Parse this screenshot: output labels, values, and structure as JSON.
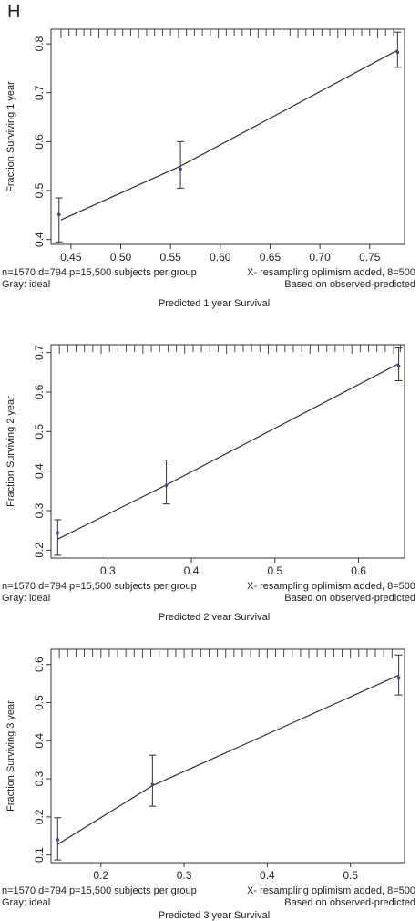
{
  "panel_label": "H",
  "chart_data": [
    {
      "type": "line",
      "ylabel": "Fraction Surviving 1 year",
      "xtitle": "Predicted 1 year Survival",
      "xlim": [
        0.43,
        0.785
      ],
      "ylim": [
        0.39,
        0.83
      ],
      "xticks": [
        "0.45",
        "0.50",
        "0.55",
        "0.60",
        "0.65",
        "0.70",
        "0.75"
      ],
      "yticks": [
        "0.4",
        "0.5",
        "0.6",
        "0.7",
        "0.8"
      ],
      "line": {
        "x": [
          0.44,
          0.56,
          0.778
        ],
        "y": [
          0.44,
          0.55,
          0.787
        ]
      },
      "points": [
        {
          "x": 0.438,
          "y": 0.451,
          "lower": 0.395,
          "upper": 0.485
        },
        {
          "x": 0.56,
          "y": 0.544,
          "lower": 0.505,
          "upper": 0.6
        },
        {
          "x": 0.778,
          "y": 0.783,
          "lower": 0.752,
          "upper": 0.824
        }
      ],
      "rug": [
        0.44,
        0.448,
        0.455,
        0.463,
        0.47,
        0.478,
        0.486,
        0.494,
        0.502,
        0.51,
        0.518,
        0.526,
        0.534,
        0.542,
        0.55,
        0.558,
        0.566,
        0.574,
        0.582,
        0.59,
        0.598,
        0.606,
        0.614,
        0.622,
        0.63,
        0.638,
        0.646,
        0.654,
        0.662,
        0.67,
        0.678,
        0.686,
        0.694,
        0.702,
        0.71,
        0.718,
        0.726,
        0.734,
        0.742,
        0.75,
        0.758,
        0.766,
        0.774
      ],
      "note_left_1": "n=1570 d=794 p=15,500 subjects per group",
      "note_right_1": "X- resampling oplimism added, 8=500",
      "note_left_2": "Gray: ideal",
      "note_right_2": "Based on observed-predicted"
    },
    {
      "type": "line",
      "ylabel": "Fraction Surviving 2 year",
      "xtitle": "Predicted 2 year Survival",
      "xlim": [
        0.232,
        0.655
      ],
      "ylim": [
        0.18,
        0.72
      ],
      "xticks": [
        "0.3",
        "0.4",
        "0.5",
        "0.6"
      ],
      "yticks": [
        "0.2",
        "0.3",
        "0.4",
        "0.5",
        "0.6",
        "0.7"
      ],
      "line": {
        "x": [
          0.24,
          0.37,
          0.648
        ],
        "y": [
          0.228,
          0.365,
          0.672
        ]
      },
      "points": [
        {
          "x": 0.24,
          "y": 0.244,
          "lower": 0.187,
          "upper": 0.277
        },
        {
          "x": 0.37,
          "y": 0.364,
          "lower": 0.317,
          "upper": 0.428
        },
        {
          "x": 0.648,
          "y": 0.666,
          "lower": 0.629,
          "upper": 0.712
        }
      ],
      "rug": [
        0.242,
        0.252,
        0.262,
        0.272,
        0.282,
        0.292,
        0.302,
        0.312,
        0.322,
        0.332,
        0.342,
        0.352,
        0.362,
        0.372,
        0.382,
        0.392,
        0.402,
        0.412,
        0.422,
        0.432,
        0.442,
        0.452,
        0.462,
        0.472,
        0.482,
        0.492,
        0.502,
        0.512,
        0.522,
        0.532,
        0.542,
        0.552,
        0.562,
        0.572,
        0.582,
        0.592,
        0.602,
        0.612,
        0.622,
        0.632,
        0.642,
        0.65
      ],
      "note_left_1": "n=1570 d=794 p=15,500 subjects per group",
      "note_right_1": "X- resampling oplimism added, 8=500",
      "note_left_2": "Gray: ideal",
      "note_right_2": "Based on observed-predicted"
    },
    {
      "type": "line",
      "ylabel": "Fraction Surviving 3 year",
      "xtitle": "Predicted 3 year Survival",
      "xlim": [
        0.14,
        0.565
      ],
      "ylim": [
        0.08,
        0.64
      ],
      "xticks": [
        "0.2",
        "0.3",
        "0.4",
        "0.5"
      ],
      "yticks": [
        "0.1",
        "0.2",
        "0.3",
        "0.4",
        "0.5",
        "0.6"
      ],
      "line": {
        "x": [
          0.148,
          0.262,
          0.558
        ],
        "y": [
          0.128,
          0.282,
          0.572
        ]
      },
      "points": [
        {
          "x": 0.148,
          "y": 0.14,
          "lower": 0.087,
          "upper": 0.198
        },
        {
          "x": 0.262,
          "y": 0.285,
          "lower": 0.228,
          "upper": 0.362
        },
        {
          "x": 0.558,
          "y": 0.565,
          "lower": 0.52,
          "upper": 0.625
        }
      ],
      "rug": [
        0.15,
        0.16,
        0.17,
        0.18,
        0.19,
        0.2,
        0.21,
        0.22,
        0.23,
        0.24,
        0.25,
        0.26,
        0.27,
        0.28,
        0.29,
        0.3,
        0.31,
        0.32,
        0.33,
        0.34,
        0.35,
        0.36,
        0.37,
        0.38,
        0.39,
        0.4,
        0.41,
        0.42,
        0.43,
        0.44,
        0.45,
        0.46,
        0.47,
        0.48,
        0.49,
        0.5,
        0.51,
        0.52,
        0.53,
        0.54,
        0.55
      ],
      "note_left_1": "n=1570 d=794 p=15,500 subjects per group",
      "note_right_1": "X- resampling oplimism added, 8=500",
      "note_left_2": "Gray: ideal",
      "note_right_2": "Based on observed-predicted"
    }
  ]
}
